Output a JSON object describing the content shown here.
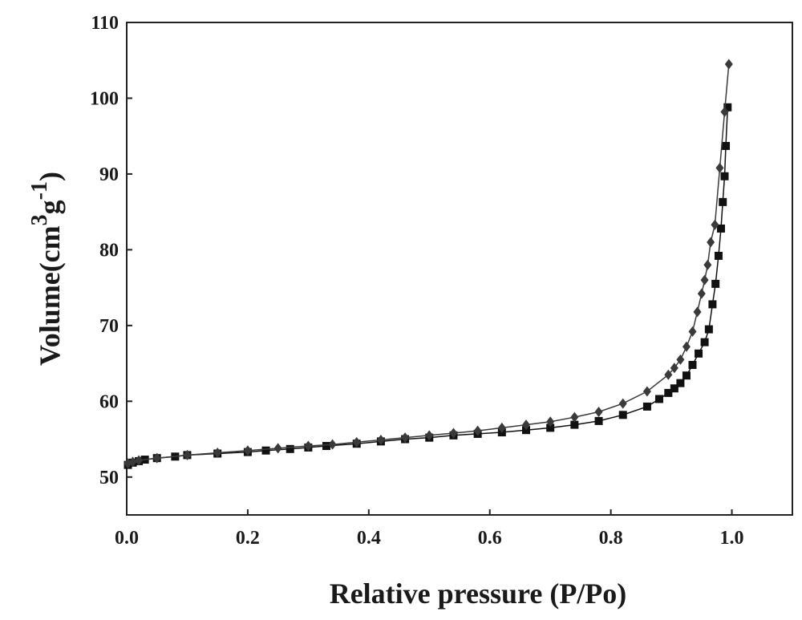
{
  "chart_data": {
    "type": "line",
    "title": "",
    "xlabel": "Relative pressure (P/Po)",
    "ylabel": {
      "prefix": "Volume(",
      "unit_a": "cm",
      "sup_a": "3",
      "unit_b": "g",
      "sup_b": "-1",
      "suffix": ")"
    },
    "xlim": [
      0.0,
      1.1
    ],
    "ylim": [
      45,
      110
    ],
    "xticks": [
      0.0,
      0.2,
      0.4,
      0.6,
      0.8,
      1.0
    ],
    "xtick_labels": [
      "0.0",
      "0.2",
      "0.4",
      "0.6",
      "0.8",
      "1.0"
    ],
    "yticks": [
      50,
      60,
      70,
      80,
      90,
      100,
      110
    ],
    "ytick_labels": [
      "50",
      "60",
      "70",
      "80",
      "90",
      "100",
      "110"
    ],
    "grid": false,
    "legend": "none",
    "series": [
      {
        "marker": "square",
        "color": "#111111",
        "x": [
          0.002,
          0.01,
          0.02,
          0.03,
          0.05,
          0.08,
          0.1,
          0.15,
          0.2,
          0.23,
          0.27,
          0.3,
          0.33,
          0.38,
          0.42,
          0.46,
          0.5,
          0.54,
          0.58,
          0.62,
          0.66,
          0.7,
          0.74,
          0.78,
          0.82,
          0.86,
          0.88,
          0.895,
          0.905,
          0.915,
          0.925,
          0.935,
          0.945,
          0.955,
          0.962,
          0.968,
          0.973,
          0.978,
          0.982,
          0.985,
          0.988,
          0.99,
          0.993
        ],
        "y": [
          51.6,
          51.9,
          52.1,
          52.3,
          52.5,
          52.7,
          52.9,
          53.1,
          53.3,
          53.5,
          53.7,
          53.9,
          54.1,
          54.4,
          54.7,
          55.0,
          55.2,
          55.5,
          55.7,
          55.9,
          56.2,
          56.5,
          56.9,
          57.4,
          58.2,
          59.3,
          60.3,
          61.1,
          61.7,
          62.4,
          63.4,
          64.8,
          66.3,
          67.8,
          69.5,
          72.8,
          75.5,
          79.2,
          82.8,
          86.3,
          89.7,
          93.7,
          98.8
        ]
      },
      {
        "marker": "diamond",
        "color": "#3a3a3a",
        "x": [
          0.002,
          0.01,
          0.02,
          0.05,
          0.1,
          0.15,
          0.2,
          0.25,
          0.3,
          0.34,
          0.38,
          0.42,
          0.46,
          0.5,
          0.54,
          0.58,
          0.62,
          0.66,
          0.7,
          0.74,
          0.78,
          0.82,
          0.86,
          0.895,
          0.905,
          0.915,
          0.925,
          0.935,
          0.943,
          0.95,
          0.955,
          0.96,
          0.965,
          0.972,
          0.98,
          0.988,
          0.995
        ],
        "y": [
          51.8,
          52.0,
          52.2,
          52.5,
          52.9,
          53.2,
          53.5,
          53.8,
          54.1,
          54.3,
          54.6,
          54.9,
          55.2,
          55.5,
          55.8,
          56.1,
          56.5,
          56.9,
          57.3,
          57.9,
          58.6,
          59.7,
          61.3,
          63.5,
          64.4,
          65.5,
          67.2,
          69.2,
          71.8,
          74.2,
          76.0,
          78.0,
          81.0,
          83.3,
          90.8,
          98.2,
          104.5
        ]
      }
    ]
  }
}
